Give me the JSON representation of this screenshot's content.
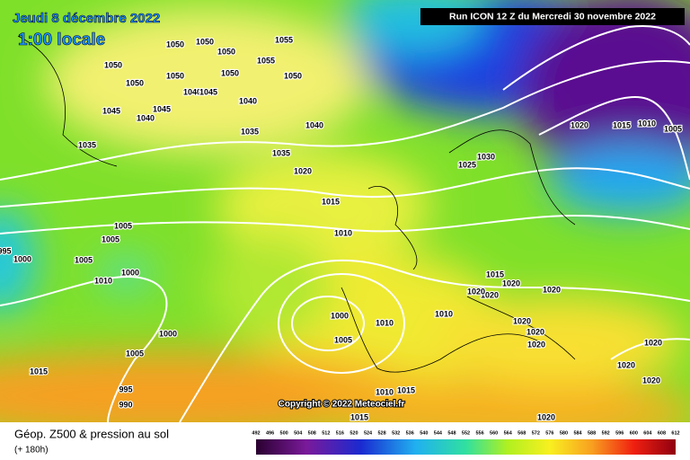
{
  "header": {
    "date": "Jeudi 8 décembre 2022",
    "time": "1:00 locale",
    "run": "Run ICON 12 Z du Mercredi 30 novembre 2022"
  },
  "copyright": "Copyright © 2022 Meteociel.fr",
  "legend": {
    "title": "Géop. Z500 & pression au sol",
    "lead": "(+ 180h)",
    "scale": [
      492,
      496,
      500,
      504,
      508,
      512,
      516,
      520,
      524,
      528,
      532,
      536,
      540,
      544,
      548,
      552,
      556,
      560,
      564,
      568,
      572,
      576,
      580,
      584,
      588,
      592,
      596,
      600,
      604,
      608,
      612
    ]
  },
  "isobar_labels": [
    "1050",
    "1050",
    "1055",
    "1050",
    "1055",
    "1050",
    "1050",
    "1050",
    "1050",
    "1050",
    "1040",
    "1045",
    "1040",
    "1045",
    "1040",
    "1045",
    "1040",
    "1035",
    "1035",
    "1035",
    "1030",
    "1025",
    "1020",
    "1015",
    "1010",
    "1005",
    "1005",
    "1005",
    "1000",
    "995",
    "1000",
    "1010",
    "1010",
    "1005",
    "1000",
    "1010",
    "1005",
    "1015",
    "1000",
    "995",
    "990",
    "1015",
    "1010",
    "1015",
    "1020",
    "1020",
    "1015",
    "1010",
    "1005",
    "1015",
    "1020",
    "1020",
    "1020",
    "1020",
    "1020",
    "1020",
    "1020",
    "1020",
    "1020",
    "1020"
  ]
}
